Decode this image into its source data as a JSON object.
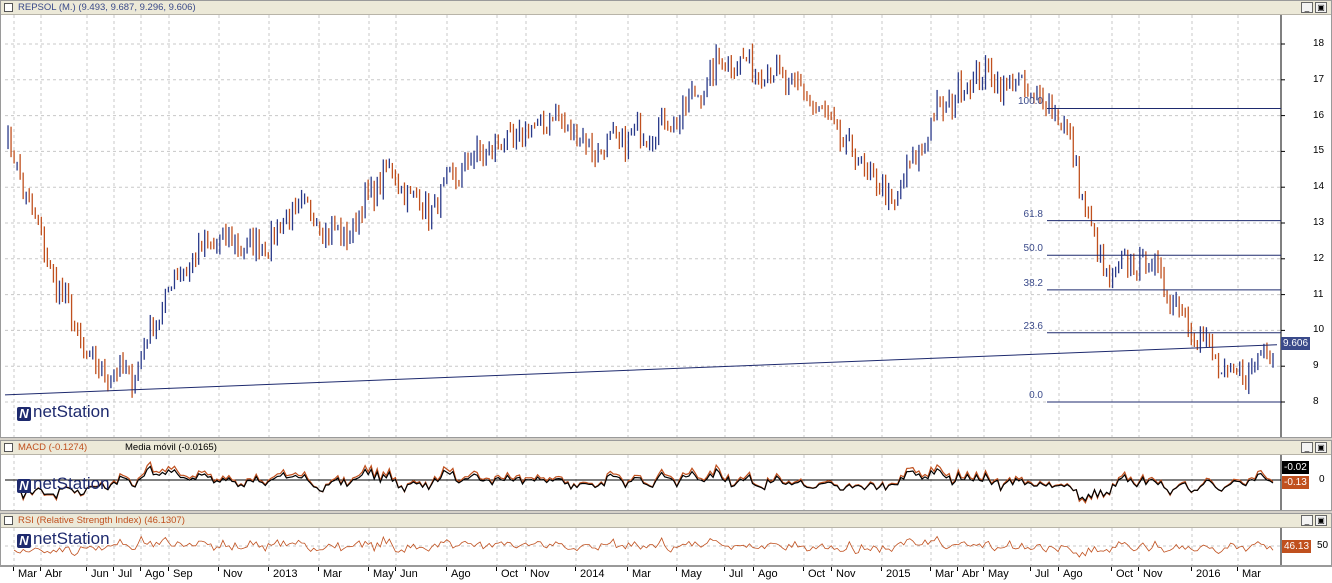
{
  "main_panel": {
    "title": "REPSOL (M.) (9.493, 9.687, 9.296, 9.606)",
    "y_labels": [
      "18",
      "17",
      "16",
      "15",
      "14",
      "13",
      "12",
      "11",
      "10",
      "9",
      "8"
    ],
    "current_price_tag": "9.606",
    "fib_levels": [
      "100.0",
      "61.8",
      "50.0",
      "38.2",
      "23.6",
      "0.0"
    ],
    "logo_text": "netStation",
    "logo_mark": "N"
  },
  "macd_panel": {
    "title": "MACD (-0.1274)",
    "title2": "Media móvil (-0.0165)",
    "y_label": "0",
    "tag_signal": "-0.02",
    "tag_macd": "-0.13",
    "logo_text": "netStation",
    "logo_mark": "N"
  },
  "rsi_panel": {
    "title": "RSI (Relative Strength Index) (46.1307)",
    "y_label": "50",
    "tag_rsi": "46.13",
    "logo_text": "netStation",
    "logo_mark": "N"
  },
  "window_buttons": {
    "minimize": "_",
    "maximize": "▣"
  },
  "x_axis": [
    "Mar",
    "Abr",
    "Jun",
    "Jul",
    "Ago",
    "Sep",
    "Nov",
    "2013",
    "Mar",
    "May",
    "Jun",
    "Ago",
    "Oct",
    "Nov",
    "2014",
    "Mar",
    "May",
    "Jul",
    "Ago",
    "Oct",
    "Nov",
    "2015",
    "Mar",
    "Abr",
    "May",
    "Jul",
    "Ago",
    "Oct",
    "Nov",
    "2016",
    "Mar"
  ],
  "colors": {
    "up_bar": "#2a3a8a",
    "down_bar": "#c0501e",
    "line": "#1e2a6e",
    "macd_tag_bg": "#c0501e",
    "signal_tag_bg": "#000000",
    "price_tag_bg": "#3a4a8a",
    "rsi_line": "#c0501e"
  },
  "chart_data": {
    "type": "line",
    "title": "REPSOL (M.) (9.493, 9.687, 9.296, 9.606)",
    "x": [
      "Mar",
      "Abr",
      "Jun",
      "Jul",
      "Ago",
      "Sep",
      "Nov",
      "2013",
      "Mar",
      "May",
      "Jun",
      "Ago",
      "Oct",
      "Nov",
      "2014",
      "Mar",
      "May",
      "Jul",
      "Ago",
      "Oct",
      "Nov",
      "2015",
      "Mar",
      "Abr",
      "May",
      "Jul",
      "Ago",
      "Oct",
      "Nov",
      "2016",
      "Mar"
    ],
    "series": [
      {
        "values": [
          15.5,
          12.0,
          9.0,
          8.7,
          11.5,
          12.5,
          12.3,
          13.5,
          12.5,
          14.5,
          13.3,
          14.8,
          15.3,
          16.0,
          15.0,
          15.5,
          16.0,
          17.6,
          17.3,
          16.5,
          15.0,
          13.5,
          16.0,
          17.2,
          16.8,
          16.0,
          11.5,
          12.0,
          10.3,
          8.5,
          9.6
        ]
      }
    ],
    "ylim": [
      8,
      18
    ],
    "fibonacci": {
      "high": 16.2,
      "low": 8.0,
      "levels": [
        100.0,
        61.8,
        50.0,
        38.2,
        23.6,
        0.0
      ]
    }
  }
}
